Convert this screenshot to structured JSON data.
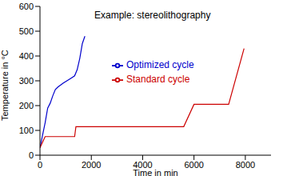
{
  "chart_data": {
    "type": "line",
    "annotation": "Example: stereolithography",
    "x_label": "Time in min",
    "y_label": "Temperature in °C",
    "xlim": [
      0,
      9000
    ],
    "xticks": [
      0,
      2000,
      4000,
      6000,
      8000
    ],
    "ylim": [
      0,
      600
    ],
    "yticks": [
      0,
      100,
      200,
      300,
      400,
      500,
      600
    ],
    "grid": false,
    "legend": "center",
    "series": [
      {
        "name": "Optimized cycle",
        "color": "#0000cc",
        "x": [
          0,
          100,
          200,
          300,
          400,
          500,
          600,
          700,
          900,
          1200,
          1350,
          1450,
          1550,
          1650,
          1750
        ],
        "values": [
          30,
          80,
          130,
          190,
          210,
          240,
          265,
          275,
          290,
          310,
          320,
          345,
          390,
          450,
          480
        ]
      },
      {
        "name": "Standard cycle",
        "color": "#cc0000",
        "x": [
          0,
          200,
          1350,
          1400,
          5600,
          6000,
          7350,
          7950
        ],
        "values": [
          30,
          75,
          75,
          115,
          115,
          205,
          205,
          430
        ]
      }
    ]
  }
}
